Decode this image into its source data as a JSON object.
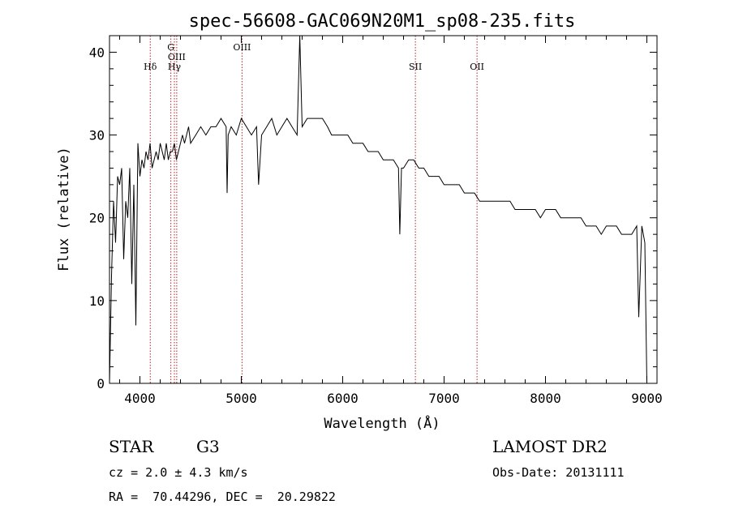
{
  "chart_data": {
    "type": "line",
    "title": "spec-56608-GAC069N20M1_sp08-235.fits",
    "xlabel": "Wavelength (Å)",
    "ylabel": "Flux (relative)",
    "xlim": [
      3700,
      9100
    ],
    "ylim": [
      0,
      42
    ],
    "xticks": [
      4000,
      5000,
      6000,
      7000,
      8000,
      9000
    ],
    "yticks": [
      0,
      10,
      20,
      30,
      40
    ],
    "grid": false,
    "line_color": "#000000",
    "marker_color": "#b22222",
    "spectral_lines": [
      {
        "name": "Hδ",
        "wavelength": 4102,
        "level": 2
      },
      {
        "name": "G",
        "wavelength": 4305,
        "level": 0
      },
      {
        "name": "OIII",
        "wavelength": 4363,
        "level": 1
      },
      {
        "name": "Hγ",
        "wavelength": 4340,
        "level": 2
      },
      {
        "name": "OIII",
        "wavelength": 5007,
        "level": 0
      },
      {
        "name": "SII",
        "wavelength": 6717,
        "level": 2
      },
      {
        "name": "OII",
        "wavelength": 7325,
        "level": 2
      }
    ],
    "series": [
      {
        "x": [
          3700,
          3720,
          3740,
          3760,
          3780,
          3800,
          3820,
          3840,
          3860,
          3880,
          3900,
          3920,
          3940,
          3960,
          3980,
          4000,
          4020,
          4040,
          4060,
          4080,
          4100,
          4120,
          4140,
          4160,
          4180,
          4200,
          4220,
          4240,
          4260,
          4280,
          4300,
          4320,
          4340,
          4360,
          4380,
          4400,
          4420,
          4440,
          4460,
          4480,
          4500,
          4550,
          4600,
          4650,
          4700,
          4750,
          4800,
          4850,
          4860,
          4870,
          4900,
          4950,
          5000,
          5050,
          5100,
          5150,
          5170,
          5200,
          5250,
          5300,
          5350,
          5400,
          5450,
          5500,
          5550,
          5577,
          5600,
          5650,
          5700,
          5750,
          5800,
          5850,
          5890,
          5950,
          6000,
          6050,
          6100,
          6150,
          6200,
          6250,
          6300,
          6350,
          6400,
          6450,
          6500,
          6550,
          6563,
          6580,
          6600,
          6650,
          6700,
          6750,
          6800,
          6850,
          6900,
          6950,
          7000,
          7050,
          7100,
          7150,
          7200,
          7250,
          7300,
          7350,
          7400,
          7450,
          7500,
          7550,
          7600,
          7650,
          7700,
          7750,
          7800,
          7850,
          7900,
          7950,
          8000,
          8050,
          8100,
          8150,
          8200,
          8250,
          8300,
          8350,
          8400,
          8450,
          8500,
          8550,
          8600,
          8650,
          8700,
          8750,
          8800,
          8850,
          8900,
          8920,
          8950,
          8980,
          9000
        ],
        "y": [
          0,
          13,
          22,
          17,
          25,
          24,
          26,
          15,
          22,
          20,
          26,
          12,
          24,
          7,
          29,
          25,
          27,
          26,
          28,
          27,
          29,
          26,
          27,
          28,
          27,
          29,
          28,
          27,
          29,
          27,
          28,
          28,
          29,
          27,
          28,
          29,
          30,
          29,
          30,
          31,
          29,
          30,
          31,
          30,
          31,
          31,
          32,
          31,
          23,
          30,
          31,
          30,
          32,
          31,
          30,
          31,
          24,
          30,
          31,
          32,
          30,
          31,
          32,
          31,
          30,
          42,
          31,
          32,
          32,
          32,
          32,
          31,
          30,
          30,
          30,
          30,
          29,
          29,
          29,
          28,
          28,
          28,
          27,
          27,
          27,
          26,
          18,
          26,
          26,
          27,
          27,
          26,
          26,
          25,
          25,
          25,
          24,
          24,
          24,
          24,
          23,
          23,
          23,
          22,
          22,
          22,
          22,
          22,
          22,
          22,
          21,
          21,
          21,
          21,
          21,
          20,
          21,
          21,
          21,
          20,
          20,
          20,
          20,
          20,
          19,
          19,
          19,
          18,
          19,
          19,
          19,
          18,
          18,
          18,
          19,
          8,
          19,
          17,
          0
        ]
      }
    ]
  },
  "info": {
    "class": "STAR",
    "subclass": "G3",
    "survey": "LAMOST DR2",
    "cz": "cz = 2.0 ± 4.3 km/s",
    "obs_date": "Obs-Date: 20131111",
    "radec": "RA =  70.44296, DEC =  20.29822"
  }
}
